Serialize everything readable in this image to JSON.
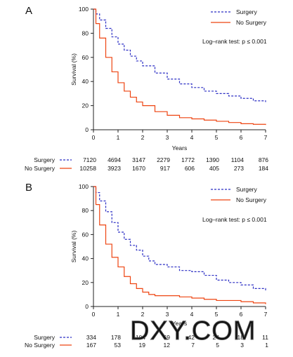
{
  "colors": {
    "surgery": "#2b2ec4",
    "no_surgery": "#ee4411",
    "axis": "#222222",
    "watermark": "#666666"
  },
  "watermark": "DXY.COM",
  "chart_data": [
    {
      "type": "line",
      "panel_label": "A",
      "xlabel": "Years",
      "ylabel": "Survival (%)",
      "xlim": [
        0,
        7
      ],
      "ylim": [
        0,
        100
      ],
      "xticks": [
        "0",
        "1",
        "2",
        "3",
        "4",
        "5",
        "6",
        "7"
      ],
      "yticks": [
        "0",
        "20",
        "40",
        "60",
        "80",
        "100"
      ],
      "grid": false,
      "legend_position": "top-right",
      "annotation": "Log–rank test: p ≤ 0.001",
      "series": [
        {
          "name": "Surgery",
          "style": "dashed",
          "color": "#2b2ec4",
          "x": [
            0,
            0.1,
            0.25,
            0.5,
            0.75,
            1,
            1.25,
            1.5,
            1.75,
            2,
            2.5,
            3,
            3.5,
            4,
            4.5,
            5,
            5.5,
            6,
            6.5,
            7
          ],
          "y": [
            100,
            96,
            91,
            84,
            77,
            71,
            66,
            61,
            57,
            53,
            47,
            42,
            38,
            35,
            32,
            30,
            28,
            26,
            24,
            23
          ],
          "at_risk": [
            "7120",
            "4694",
            "3147",
            "2279",
            "1772",
            "1390",
            "1104",
            "876"
          ]
        },
        {
          "name": "No Surgery",
          "style": "solid",
          "color": "#ee4411",
          "x": [
            0,
            0.1,
            0.25,
            0.5,
            0.75,
            1,
            1.25,
            1.5,
            1.75,
            2,
            2.5,
            3,
            3.5,
            4,
            4.5,
            5,
            5.5,
            6,
            6.5,
            7
          ],
          "y": [
            100,
            88,
            76,
            60,
            48,
            39,
            32,
            27,
            23,
            20,
            15,
            12,
            10,
            9,
            8,
            7,
            6,
            5,
            4.5,
            4
          ],
          "at_risk": [
            "10258",
            "3923",
            "1670",
            "917",
            "606",
            "405",
            "273",
            "184"
          ]
        }
      ]
    },
    {
      "type": "line",
      "panel_label": "B",
      "xlabel": "Years",
      "ylabel": "Survival (%)",
      "xlim": [
        0,
        7
      ],
      "ylim": [
        0,
        100
      ],
      "xticks": [
        "0",
        "1",
        "2",
        "3",
        "4",
        "5",
        "6",
        "7"
      ],
      "yticks": [
        "0",
        "20",
        "40",
        "60",
        "80",
        "100"
      ],
      "grid": false,
      "legend_position": "top-right",
      "annotation": "Log–rank test: p ≤ 0.001",
      "series": [
        {
          "name": "Surgery",
          "style": "dashed",
          "color": "#2b2ec4",
          "x": [
            0,
            0.1,
            0.25,
            0.5,
            0.75,
            1,
            1.25,
            1.5,
            1.75,
            2,
            2.25,
            2.5,
            3,
            3.5,
            4,
            4.5,
            5,
            5.5,
            6,
            6.5,
            7
          ],
          "y": [
            100,
            95,
            88,
            79,
            70,
            62,
            56,
            51,
            47,
            42,
            38,
            35,
            33,
            30,
            29,
            26,
            22,
            20,
            18,
            15,
            13
          ],
          "at_risk": [
            "334",
            "178",
            "104",
            "69",
            "42",
            "24",
            "18",
            "11"
          ]
        },
        {
          "name": "No Surgery",
          "style": "solid",
          "color": "#ee4411",
          "x": [
            0,
            0.1,
            0.25,
            0.5,
            0.75,
            1,
            1.25,
            1.5,
            1.75,
            2,
            2.25,
            2.5,
            3,
            3.5,
            4,
            4.5,
            5,
            5.5,
            6,
            6.5,
            7
          ],
          "y": [
            100,
            85,
            68,
            52,
            41,
            33,
            25,
            19,
            15,
            12,
            10,
            9,
            9,
            8,
            7,
            6,
            5,
            5,
            4,
            3,
            2
          ],
          "at_risk": [
            "167",
            "53",
            "19",
            "12",
            "7",
            "5",
            "3",
            "1"
          ]
        }
      ]
    }
  ]
}
